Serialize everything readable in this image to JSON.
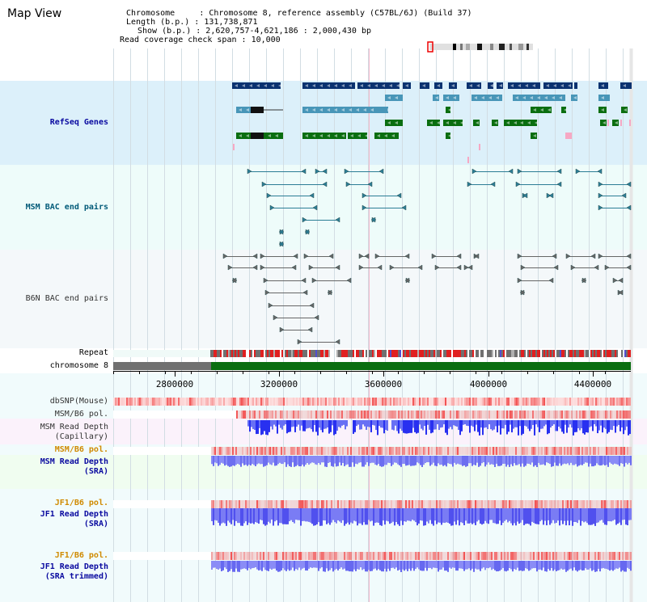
{
  "title": "Map View",
  "info": {
    "chromosome_label": "Chromosome",
    "chromosome_value": "Chromosome 8, reference assembly (C57BL/6J) (Build 37)",
    "length_label": "Length (b.p.)",
    "length_value": "131,738,871",
    "show_label": "Show (b.p.)",
    "show_value": "2,620,757-4,621,186 : 2,000,430 bp",
    "span_label": "Read coverage check span",
    "span_value": "10,000"
  },
  "tracks": {
    "refseq": "RefSeq Genes",
    "msm_bac": "MSM BAC end pairs",
    "b6n_bac": "B6N BAC end pairs",
    "repeat": "Repeat",
    "chromosome": "chromosome 8",
    "dbsnp": "dbSNP(Mouse)",
    "msm_b6_pol_1": "MSM/B6 pol.",
    "msm_read_depth_cap_1": "MSM Read Depth",
    "msm_read_depth_cap_2": "(Capillary)",
    "msm_b6_pol_2": "MSM/B6 pol.",
    "msm_read_depth_sra_1": "MSM Read Depth",
    "msm_read_depth_sra_2": "(SRA)",
    "jf1_b6_pol_1": "JF1/B6 pol.",
    "jf1_read_depth_1": "JF1 Read Depth",
    "jf1_read_depth_2": "(SRA)",
    "jf1_b6_pol_2": "JF1/B6 pol.",
    "jf1_read_depth_trim_1": "JF1 Read Depth",
    "jf1_read_depth_trim_2": "(SRA trimmed)"
  },
  "axis_ticks": [
    "2800000",
    "3200000",
    "3600000",
    "4000000",
    "4400000"
  ],
  "colors": {
    "refseq_bg": "#dcf0fa",
    "bac_bg": "#eefcfa",
    "b6n_bg": "#f4f8fa",
    "navy": "#0a3270",
    "teal": "#4896b8",
    "green": "#0a6e10",
    "pink": "#f6a8c4",
    "depth_blue": "#2830f0",
    "pol_red": "#f27070",
    "msm_label": "#005a78",
    "blue_label": "#0a0aa0",
    "orange_label": "#d08a00"
  }
}
